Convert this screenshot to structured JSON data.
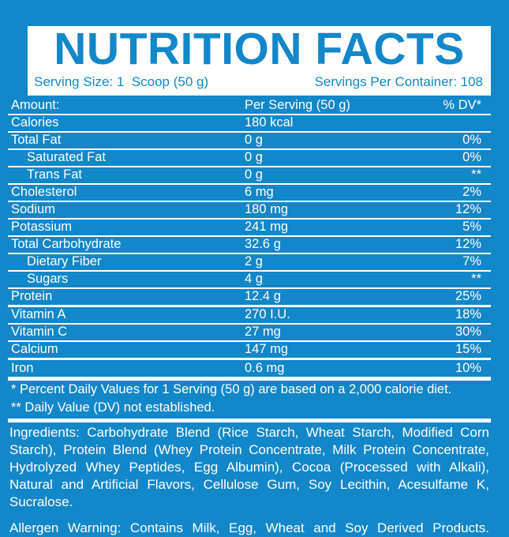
{
  "colors": {
    "label_blue": "#1287C9",
    "panel_white": "#FFFFFF"
  },
  "header": {
    "title": "NUTRITION FACTS",
    "serving_size": "Serving Size: 1  Scoop (50 g)",
    "servings_per_container": "Servings Per Container: 108"
  },
  "table": {
    "header": {
      "amount": "Amount:",
      "per_serving": "Per Serving (50 g)",
      "dv": "% DV*"
    },
    "rows": [
      {
        "name": "Calories",
        "amount": "180 kcal",
        "dv": ""
      },
      {
        "name": "Total Fat",
        "amount": "0 g",
        "dv": "0%"
      },
      {
        "name": "Saturated Fat",
        "amount": "0 g",
        "dv": "0%"
      },
      {
        "name": "Trans Fat",
        "amount": "0 g",
        "dv": "**"
      },
      {
        "name": "Cholesterol",
        "amount": "6 mg",
        "dv": "2%"
      },
      {
        "name": "Sodium",
        "amount": "180 mg",
        "dv": "12%"
      },
      {
        "name": "Potassium",
        "amount": "241 mg",
        "dv": "5%"
      },
      {
        "name": "Total Carbohydrate",
        "amount": "32.6 g",
        "dv": "12%"
      },
      {
        "name": "Dietary Fiber",
        "amount": "2 g",
        "dv": "7%"
      },
      {
        "name": "Sugars",
        "amount": "4 g",
        "dv": "**"
      },
      {
        "name": "Protein",
        "amount": "12.4 g",
        "dv": "25%"
      },
      {
        "name": "Vitamin A",
        "amount": "270 I.U.",
        "dv": "18%"
      },
      {
        "name": "Vitamin C",
        "amount": "27 mg",
        "dv": "30%"
      },
      {
        "name": "Calcium",
        "amount": "147 mg",
        "dv": "15%"
      },
      {
        "name": "Iron",
        "amount": "0.6 mg",
        "dv": "10%"
      }
    ]
  },
  "footnotes": {
    "dv_note": "* Percent Daily Values for 1 Serving (50 g) are based on a 2,000 calorie diet.",
    "dv_not_established": "** Daily Value (DV) not established."
  },
  "ingredients": "Ingredients: Carbohydrate Blend (Rice Starch, Wheat Starch, Modified Corn Starch), Protein Blend (Whey Protein Concentrate, Milk Protein Concentrate, Hydrolyzed Whey Peptides, Egg Albumin), Cocoa (Processed with Alkali), Natural and Artificial Flavors, Cellulose Gum, Soy Lecithin, Acesulfame K, Sucralose.",
  "allergen_warning": "Allergen Warning: Contains Milk, Egg, Wheat and Soy Derived Products."
}
